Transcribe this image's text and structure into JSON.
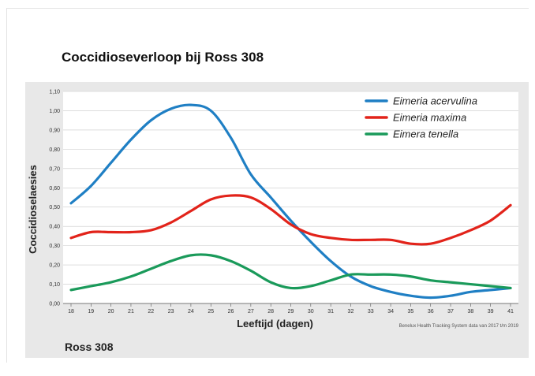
{
  "page": {
    "title": "Coccidioseverloop bij Ross 308",
    "footer_label": "Ross 308",
    "source_note": "Benelux Health Tracking System data van 2017 t/m 2019"
  },
  "chart_data": {
    "type": "line",
    "title": "",
    "xlabel": "Leeftijd (dagen)",
    "ylabel": "Coccidioselaesies",
    "x": [
      18,
      19,
      20,
      21,
      22,
      23,
      24,
      25,
      26,
      27,
      28,
      29,
      30,
      31,
      32,
      33,
      34,
      35,
      36,
      37,
      38,
      39,
      41
    ],
    "x_tick_labels": [
      "18",
      "19",
      "20",
      "21",
      "22",
      "23",
      "24",
      "25",
      "26",
      "27",
      "28",
      "29",
      "30",
      "31",
      "32",
      "33",
      "34",
      "35",
      "36",
      "37",
      "38",
      "39",
      "41"
    ],
    "ylim": [
      0,
      1.1
    ],
    "y_ticks": [
      0,
      0.1,
      0.2,
      0.3,
      0.4,
      0.5,
      0.6,
      0.7,
      0.8,
      0.9,
      1.0,
      1.1
    ],
    "y_tick_labels": [
      "0,00",
      "0,10",
      "0,20",
      "0,30",
      "0,40",
      "0,50",
      "0,60",
      "0,70",
      "0,80",
      "0,90",
      "1,00",
      "1,10"
    ],
    "grid": "horizontal",
    "legend_position": "top-right",
    "series": [
      {
        "name": "Eimeria acervulina",
        "color": "#1f7fc4",
        "values": [
          0.52,
          0.61,
          0.73,
          0.85,
          0.95,
          1.01,
          1.03,
          1.0,
          0.86,
          0.67,
          0.55,
          0.43,
          0.32,
          0.22,
          0.14,
          0.09,
          0.06,
          0.04,
          0.03,
          0.04,
          0.06,
          0.07,
          0.08
        ]
      },
      {
        "name": "Eimeria maxima",
        "color": "#e2231a",
        "values": [
          0.34,
          0.37,
          0.37,
          0.37,
          0.38,
          0.42,
          0.48,
          0.54,
          0.56,
          0.55,
          0.49,
          0.41,
          0.36,
          0.34,
          0.33,
          0.33,
          0.33,
          0.31,
          0.31,
          0.34,
          0.38,
          0.43,
          0.51
        ]
      },
      {
        "name": "Eimera tenella",
        "color": "#1a9a5a",
        "values": [
          0.07,
          0.09,
          0.11,
          0.14,
          0.18,
          0.22,
          0.25,
          0.25,
          0.22,
          0.17,
          0.11,
          0.08,
          0.09,
          0.12,
          0.15,
          0.15,
          0.15,
          0.14,
          0.12,
          0.11,
          0.1,
          0.09,
          0.08
        ]
      }
    ]
  }
}
